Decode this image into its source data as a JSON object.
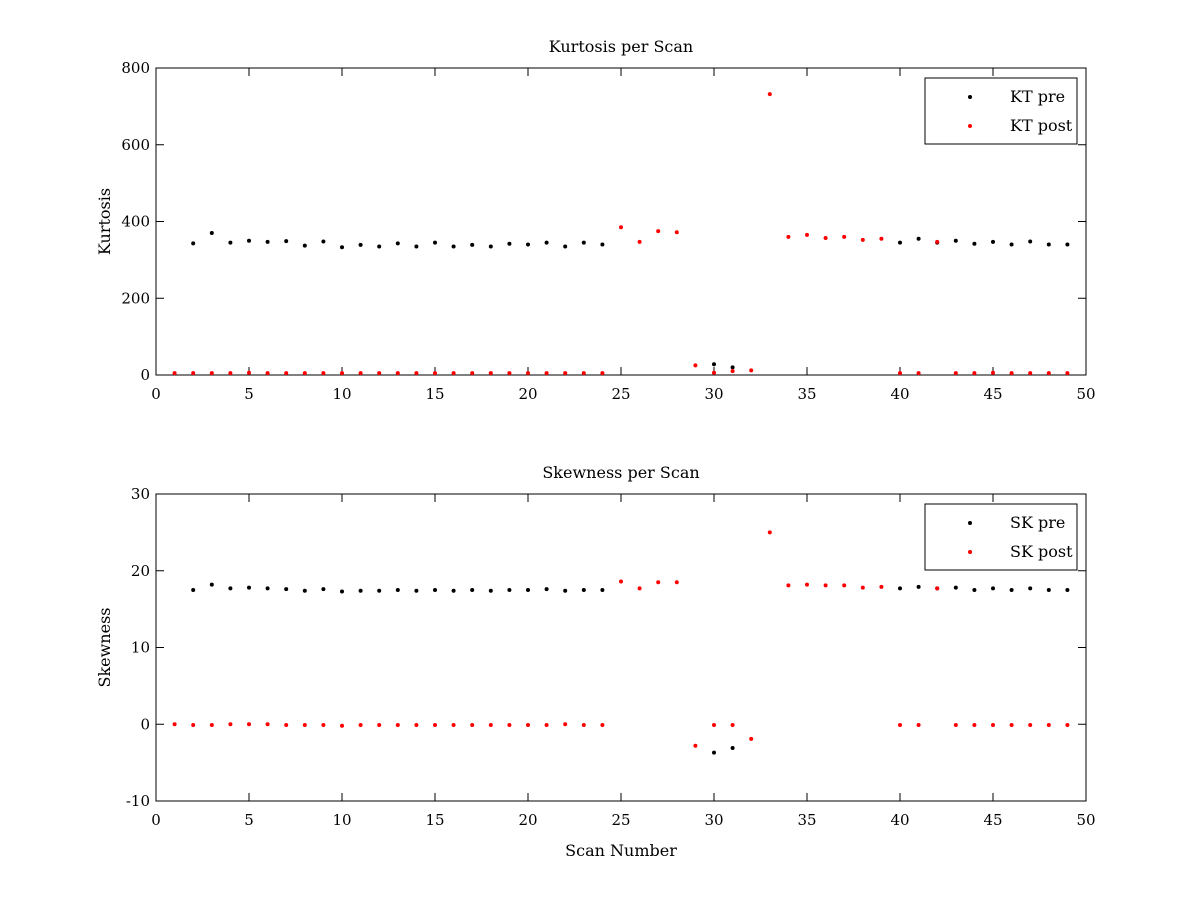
{
  "colors": {
    "pre": "#000000",
    "post": "#ff0000"
  },
  "chart_data": [
    {
      "type": "scatter",
      "title": "Kurtosis per Scan",
      "xlabel": "",
      "ylabel": "Kurtosis",
      "xlim": [
        0,
        50
      ],
      "ylim": [
        0,
        800
      ],
      "xticks": [
        0,
        5,
        10,
        15,
        20,
        25,
        30,
        35,
        40,
        45,
        50
      ],
      "yticks": [
        0,
        200,
        400,
        600,
        800
      ],
      "legend_position": "top-right",
      "series": [
        {
          "name": "KT pre",
          "color": "#000000",
          "x": [
            2,
            3,
            4,
            5,
            6,
            7,
            8,
            9,
            10,
            11,
            12,
            13,
            14,
            15,
            16,
            17,
            18,
            19,
            20,
            21,
            22,
            23,
            24,
            30,
            31,
            40,
            41,
            42,
            43,
            44,
            45,
            46,
            47,
            48,
            49
          ],
          "y": [
            343,
            370,
            345,
            350,
            347,
            349,
            337,
            348,
            333,
            339,
            335,
            343,
            335,
            345,
            335,
            339,
            335,
            342,
            340,
            345,
            335,
            345,
            340,
            28,
            20,
            345,
            355,
            345,
            350,
            342,
            347,
            340,
            348,
            340,
            340
          ]
        },
        {
          "name": "KT post",
          "color": "#ff0000",
          "x": [
            1,
            2,
            3,
            4,
            5,
            6,
            7,
            8,
            9,
            10,
            11,
            12,
            13,
            14,
            15,
            16,
            17,
            18,
            19,
            20,
            21,
            22,
            23,
            24,
            25,
            26,
            27,
            28,
            29,
            30,
            31,
            32,
            33,
            34,
            35,
            36,
            37,
            38,
            39,
            40,
            41,
            42,
            43,
            44,
            45,
            46,
            47,
            48,
            49
          ],
          "y": [
            5,
            5,
            5,
            5,
            6,
            5,
            5,
            5,
            5,
            5,
            5,
            5,
            5,
            5,
            5,
            5,
            5,
            5,
            5,
            5,
            5,
            5,
            5,
            5,
            385,
            347,
            375,
            372,
            25,
            6,
            10,
            12,
            732,
            360,
            365,
            357,
            360,
            352,
            355,
            5,
            5,
            347,
            5,
            5,
            6,
            5,
            5,
            5,
            5
          ]
        }
      ]
    },
    {
      "type": "scatter",
      "title": "Skewness per Scan",
      "xlabel": "Scan Number",
      "ylabel": "Skewness",
      "xlim": [
        0,
        50
      ],
      "ylim": [
        -10,
        30
      ],
      "xticks": [
        0,
        5,
        10,
        15,
        20,
        25,
        30,
        35,
        40,
        45,
        50
      ],
      "yticks": [
        -10,
        0,
        10,
        20,
        30
      ],
      "legend_position": "top-right",
      "series": [
        {
          "name": "SK pre",
          "color": "#000000",
          "x": [
            2,
            3,
            4,
            5,
            6,
            7,
            8,
            9,
            10,
            11,
            12,
            13,
            14,
            15,
            16,
            17,
            18,
            19,
            20,
            21,
            22,
            23,
            24,
            30,
            31,
            40,
            41,
            42,
            43,
            44,
            45,
            46,
            47,
            48,
            49
          ],
          "y": [
            17.5,
            18.2,
            17.7,
            17.8,
            17.7,
            17.6,
            17.4,
            17.6,
            17.3,
            17.4,
            17.4,
            17.5,
            17.4,
            17.5,
            17.4,
            17.5,
            17.4,
            17.5,
            17.5,
            17.6,
            17.4,
            17.5,
            17.5,
            -3.7,
            -3.1,
            17.7,
            17.9,
            17.7,
            17.8,
            17.5,
            17.7,
            17.5,
            17.7,
            17.5,
            17.5
          ]
        },
        {
          "name": "SK post",
          "color": "#ff0000",
          "x": [
            1,
            2,
            3,
            4,
            5,
            6,
            7,
            8,
            9,
            10,
            11,
            12,
            13,
            14,
            15,
            16,
            17,
            18,
            19,
            20,
            21,
            22,
            23,
            24,
            25,
            26,
            27,
            28,
            29,
            30,
            31,
            32,
            33,
            34,
            35,
            36,
            37,
            38,
            39,
            40,
            41,
            42,
            43,
            44,
            45,
            46,
            47,
            48,
            49
          ],
          "y": [
            0,
            -0.1,
            -0.1,
            0,
            0,
            0,
            -0.1,
            -0.1,
            -0.1,
            -0.2,
            -0.1,
            -0.1,
            -0.1,
            -0.1,
            -0.1,
            -0.1,
            -0.1,
            -0.1,
            -0.1,
            -0.1,
            -0.1,
            0,
            -0.1,
            -0.1,
            18.6,
            17.7,
            18.5,
            18.5,
            -2.8,
            -0.1,
            -0.1,
            -1.9,
            25,
            18.1,
            18.2,
            18.1,
            18.1,
            17.8,
            17.9,
            -0.1,
            -0.1,
            17.7,
            -0.1,
            -0.1,
            -0.1,
            -0.1,
            -0.1,
            -0.1,
            -0.1
          ]
        }
      ]
    }
  ]
}
